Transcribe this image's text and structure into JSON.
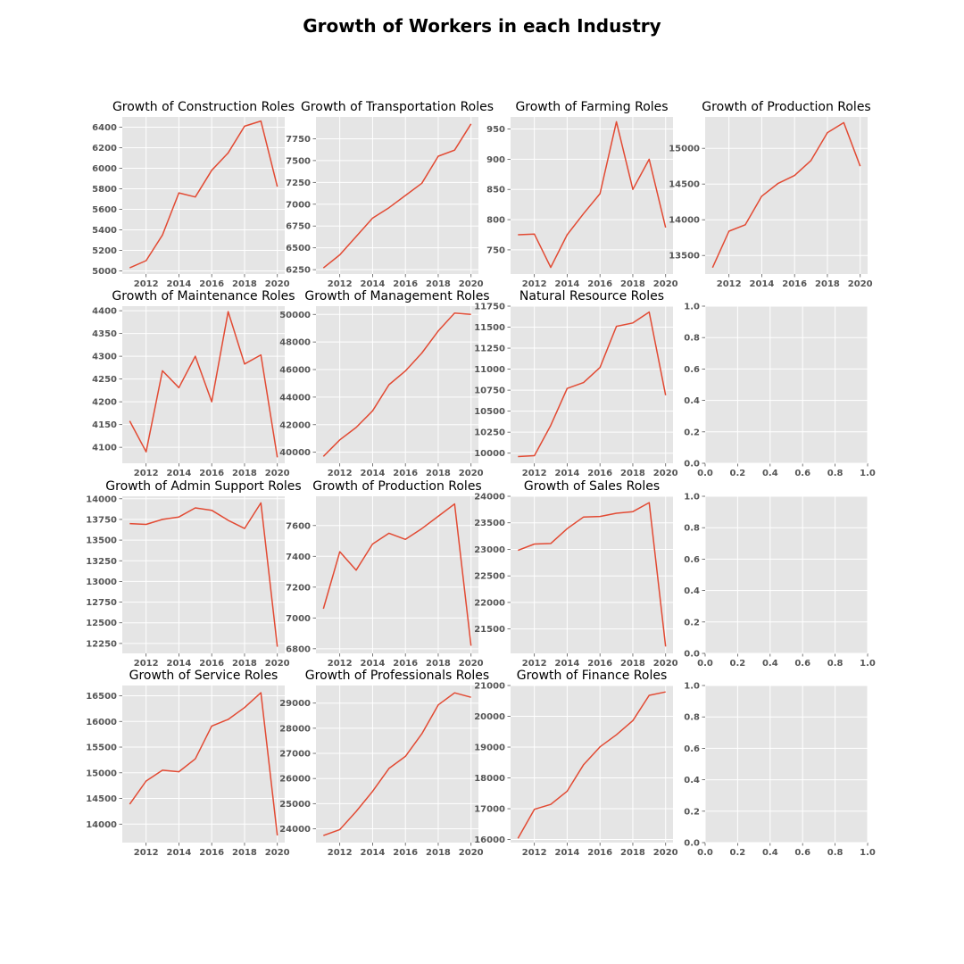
{
  "figure": {
    "title": "Growth of Workers in each Industry"
  },
  "chart_data": [
    {
      "type": "line",
      "title": "Growth of Construction Roles",
      "x": [
        2011,
        2012,
        2013,
        2014,
        2015,
        2016,
        2017,
        2018,
        2019,
        2020
      ],
      "y": [
        5030,
        5100,
        5350,
        5760,
        5720,
        5980,
        6150,
        6410,
        6460,
        5820
      ],
      "xticks": [
        2012,
        2014,
        2016,
        2018,
        2020
      ],
      "yticks": [
        5000,
        5200,
        5400,
        5600,
        5800,
        6000,
        6200,
        6400
      ],
      "ylim": [
        4970,
        6500
      ],
      "color": "#E24A33"
    },
    {
      "type": "line",
      "title": "Growth of Transportation Roles",
      "x": [
        2011,
        2012,
        2013,
        2014,
        2015,
        2016,
        2017,
        2018,
        2019,
        2020
      ],
      "y": [
        6270,
        6420,
        6630,
        6840,
        6960,
        7100,
        7240,
        7550,
        7620,
        7920
      ],
      "xticks": [
        2012,
        2014,
        2016,
        2018,
        2020
      ],
      "yticks": [
        6250,
        6500,
        6750,
        7000,
        7250,
        7500,
        7750
      ],
      "ylim": [
        6200,
        8000
      ],
      "color": "#E24A33"
    },
    {
      "type": "line",
      "title": "Growth of Farming Roles",
      "x": [
        2011,
        2012,
        2013,
        2014,
        2015,
        2016,
        2017,
        2018,
        2019,
        2020
      ],
      "y": [
        775,
        776,
        721,
        775,
        810,
        843,
        962,
        850,
        900,
        787
      ],
      "xticks": [
        2012,
        2014,
        2016,
        2018,
        2020
      ],
      "yticks": [
        750,
        800,
        850,
        900,
        950
      ],
      "ylim": [
        710,
        970
      ],
      "color": "#E24A33"
    },
    {
      "type": "line",
      "title": "Growth of Production Roles",
      "x": [
        2011,
        2012,
        2013,
        2014,
        2015,
        2016,
        2017,
        2018,
        2019,
        2020
      ],
      "y": [
        13330,
        13840,
        13930,
        14330,
        14510,
        14620,
        14830,
        15220,
        15360,
        14750
      ],
      "xticks": [
        2012,
        2014,
        2016,
        2018,
        2020
      ],
      "yticks": [
        13500,
        14000,
        14500,
        15000
      ],
      "ylim": [
        13240,
        15440
      ],
      "color": "#E24A33"
    },
    {
      "type": "line",
      "title": "Growth of Maintenance Roles",
      "x": [
        2011,
        2012,
        2013,
        2014,
        2015,
        2016,
        2017,
        2018,
        2019,
        2020
      ],
      "y": [
        4158,
        4090,
        4268,
        4231,
        4300,
        4200,
        4398,
        4283,
        4303,
        4078
      ],
      "xticks": [
        2012,
        2014,
        2016,
        2018,
        2020
      ],
      "yticks": [
        4100,
        4150,
        4200,
        4250,
        4300,
        4350,
        4400
      ],
      "ylim": [
        4065,
        4410
      ],
      "color": "#E24A33"
    },
    {
      "type": "line",
      "title": "Growth of Management Roles",
      "x": [
        2011,
        2012,
        2013,
        2014,
        2015,
        2016,
        2017,
        2018,
        2019,
        2020
      ],
      "y": [
        39700,
        40900,
        41800,
        43000,
        44900,
        45900,
        47200,
        48800,
        50100,
        50000
      ],
      "xticks": [
        2012,
        2014,
        2016,
        2018,
        2020
      ],
      "yticks": [
        40000,
        42000,
        44000,
        46000,
        48000,
        50000
      ],
      "ylim": [
        39200,
        50600
      ],
      "color": "#E24A33"
    },
    {
      "type": "line",
      "title": "Natural Resource Roles",
      "x": [
        2011,
        2012,
        2013,
        2014,
        2015,
        2016,
        2017,
        2018,
        2019,
        2020
      ],
      "y": [
        9960,
        9970,
        10330,
        10770,
        10840,
        11020,
        11510,
        11550,
        11680,
        10690
      ],
      "xticks": [
        2012,
        2014,
        2016,
        2018,
        2020
      ],
      "yticks": [
        10000,
        10250,
        10500,
        10750,
        11000,
        11250,
        11500,
        11750
      ],
      "ylim": [
        9880,
        11750
      ],
      "color": "#E24A33"
    },
    {
      "type": "line",
      "title": "",
      "x": [],
      "y": [],
      "xticks": [
        0.0,
        0.2,
        0.4,
        0.6,
        0.8,
        1.0
      ],
      "yticks": [
        0.0,
        0.2,
        0.4,
        0.6,
        0.8,
        1.0
      ],
      "xlim": [
        0,
        1
      ],
      "ylim": [
        0,
        1
      ],
      "empty": true
    },
    {
      "type": "line",
      "title": "Growth of Admin Support Roles",
      "x": [
        2011,
        2012,
        2013,
        2014,
        2015,
        2016,
        2017,
        2018,
        2019,
        2020
      ],
      "y": [
        13700,
        13690,
        13750,
        13780,
        13890,
        13860,
        13740,
        13640,
        13950,
        12210
      ],
      "xticks": [
        2012,
        2014,
        2016,
        2018,
        2020
      ],
      "yticks": [
        12250,
        12500,
        12750,
        13000,
        13250,
        13500,
        13750,
        14000
      ],
      "ylim": [
        12130,
        14030
      ],
      "color": "#E24A33"
    },
    {
      "type": "line",
      "title": "Growth of Production Roles",
      "x": [
        2011,
        2012,
        2013,
        2014,
        2015,
        2016,
        2017,
        2018,
        2019,
        2020
      ],
      "y": [
        7060,
        7430,
        7310,
        7480,
        7550,
        7510,
        7580,
        7660,
        7740,
        6820
      ],
      "xticks": [
        2012,
        2014,
        2016,
        2018,
        2020
      ],
      "yticks": [
        6800,
        7000,
        7200,
        7400,
        7600
      ],
      "ylim": [
        6770,
        7790
      ],
      "color": "#E24A33"
    },
    {
      "type": "line",
      "title": "Growth of Sales Roles",
      "x": [
        2011,
        2012,
        2013,
        2014,
        2015,
        2016,
        2017,
        2018,
        2019,
        2020
      ],
      "y": [
        22980,
        23100,
        23110,
        23390,
        23610,
        23620,
        23680,
        23710,
        23880,
        21170
      ],
      "xticks": [
        2012,
        2014,
        2016,
        2018,
        2020
      ],
      "yticks": [
        21500,
        22000,
        22500,
        23000,
        23500,
        24000
      ],
      "ylim": [
        21040,
        24000
      ],
      "color": "#E24A33"
    },
    {
      "type": "line",
      "title": "",
      "x": [],
      "y": [],
      "xticks": [
        0.0,
        0.2,
        0.4,
        0.6,
        0.8,
        1.0
      ],
      "yticks": [
        0.0,
        0.2,
        0.4,
        0.6,
        0.8,
        1.0
      ],
      "xlim": [
        0,
        1
      ],
      "ylim": [
        0,
        1
      ],
      "empty": true
    },
    {
      "type": "line",
      "title": "Growth of Service Roles",
      "x": [
        2011,
        2012,
        2013,
        2014,
        2015,
        2016,
        2017,
        2018,
        2019,
        2020
      ],
      "y": [
        14390,
        14840,
        15050,
        15020,
        15270,
        15910,
        16040,
        16270,
        16560,
        13780
      ],
      "xticks": [
        2012,
        2014,
        2016,
        2018,
        2020
      ],
      "yticks": [
        14000,
        14500,
        15000,
        15500,
        16000,
        16500
      ],
      "ylim": [
        13640,
        16700
      ],
      "color": "#E24A33"
    },
    {
      "type": "line",
      "title": "Growth of Professionals Roles",
      "x": [
        2011,
        2012,
        2013,
        2014,
        2015,
        2016,
        2017,
        2018,
        2019,
        2020
      ],
      "y": [
        23730,
        23970,
        24690,
        25490,
        26400,
        26880,
        27780,
        28930,
        29410,
        29230
      ],
      "xticks": [
        2012,
        2014,
        2016,
        2018,
        2020
      ],
      "yticks": [
        24000,
        25000,
        26000,
        27000,
        28000,
        29000
      ],
      "ylim": [
        23450,
        29700
      ],
      "color": "#E24A33"
    },
    {
      "type": "line",
      "title": "Growth of Finance Roles",
      "x": [
        2011,
        2012,
        2013,
        2014,
        2015,
        2016,
        2017,
        2018,
        2019,
        2020
      ],
      "y": [
        16040,
        16980,
        17140,
        17570,
        18430,
        19010,
        19400,
        19860,
        20680,
        20790
      ],
      "xticks": [
        2012,
        2014,
        2016,
        2018,
        2020
      ],
      "yticks": [
        16000,
        17000,
        18000,
        19000,
        20000,
        21000
      ],
      "ylim": [
        15900,
        21000
      ],
      "color": "#E24A33"
    },
    {
      "type": "line",
      "title": "",
      "x": [],
      "y": [],
      "xticks": [
        0.0,
        0.2,
        0.4,
        0.6,
        0.8,
        1.0
      ],
      "yticks": [
        0.0,
        0.2,
        0.4,
        0.6,
        0.8,
        1.0
      ],
      "xlim": [
        0,
        1
      ],
      "ylim": [
        0,
        1
      ],
      "empty": true
    }
  ]
}
